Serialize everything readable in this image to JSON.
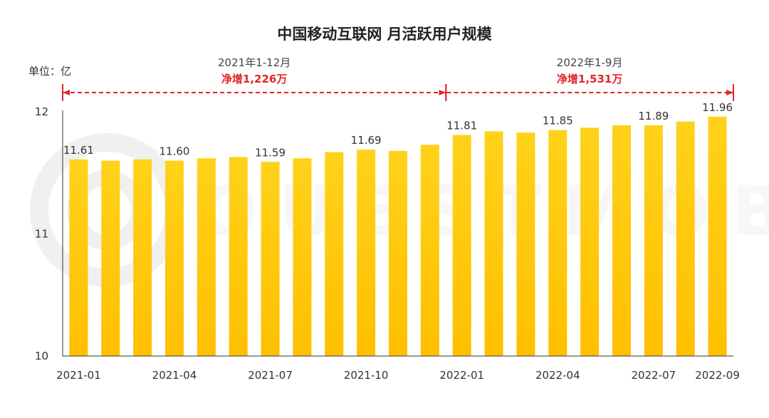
{
  "chart_data": {
    "type": "bar",
    "title": "中国移动互联网 月活跃用户规模",
    "unit_label": "单位：亿",
    "xlabel": "",
    "ylabel": "",
    "ylim": [
      10,
      12
    ],
    "yticks": [
      "10",
      "11",
      "12"
    ],
    "grid": false,
    "categories": [
      "2021-01",
      "2021-02",
      "2021-03",
      "2021-04",
      "2021-05",
      "2021-06",
      "2021-07",
      "2021-08",
      "2021-09",
      "2021-10",
      "2021-11",
      "2021-12",
      "2022-01",
      "2022-02",
      "2022-03",
      "2022-04",
      "2022-05",
      "2022-06",
      "2022-07",
      "2022-08",
      "2022-09"
    ],
    "values": [
      11.61,
      11.6,
      11.61,
      11.6,
      11.62,
      11.63,
      11.59,
      11.62,
      11.67,
      11.69,
      11.68,
      11.73,
      11.81,
      11.84,
      11.83,
      11.85,
      11.87,
      11.89,
      11.89,
      11.92,
      11.96
    ],
    "x_tick_labels": [
      {
        "index": 0,
        "text": "2021-01"
      },
      {
        "index": 3,
        "text": "2021-04"
      },
      {
        "index": 6,
        "text": "2021-07"
      },
      {
        "index": 9,
        "text": "2021-10"
      },
      {
        "index": 12,
        "text": "2022-01"
      },
      {
        "index": 15,
        "text": "2022-04"
      },
      {
        "index": 18,
        "text": "2022-07"
      },
      {
        "index": 20,
        "text": "2022-09"
      }
    ],
    "data_labels": [
      {
        "index": 0,
        "text": "11.61"
      },
      {
        "index": 3,
        "text": "11.60"
      },
      {
        "index": 6,
        "text": "11.59"
      },
      {
        "index": 9,
        "text": "11.69"
      },
      {
        "index": 12,
        "text": "11.81"
      },
      {
        "index": 15,
        "text": "11.85"
      },
      {
        "index": 18,
        "text": "11.89"
      },
      {
        "index": 20,
        "text": "11.96"
      }
    ],
    "annotations": [
      {
        "period": "2021年1-12月",
        "growth": "净增1,226万",
        "from_index": 0,
        "to_index": 11
      },
      {
        "period": "2022年1-9月",
        "growth": "净增1,531万",
        "from_index": 12,
        "to_index": 20
      }
    ]
  },
  "watermark": "QUESTMOBILE",
  "colors": {
    "bar_top": "#ffd21a",
    "bar_bottom": "#ffbf00",
    "annotation": "#e3262a",
    "axis": "#333333",
    "watermark": "#eeeeee"
  }
}
